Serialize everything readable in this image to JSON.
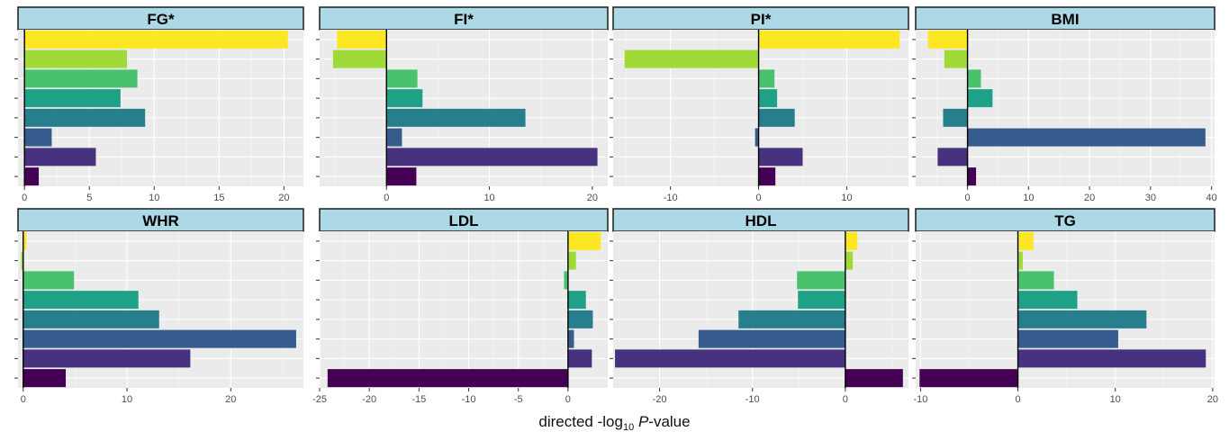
{
  "x_axis_title": {
    "prefix": "directed -log",
    "subscript": "10",
    "italic": "P",
    "suffix": "-value"
  },
  "series_colors": [
    "#fde725",
    "#a0da39",
    "#4ac16d",
    "#1fa187",
    "#277f8e",
    "#365c8d",
    "#46327e",
    "#440154"
  ],
  "chart_data": [
    {
      "type": "bar",
      "orientation": "horizontal",
      "title": "FG*",
      "xlim": [
        -0.5,
        21.5
      ],
      "ticks": [
        0,
        5,
        10,
        15,
        20
      ],
      "values": [
        20.3,
        7.9,
        8.7,
        7.4,
        9.3,
        2.1,
        5.5,
        1.1
      ]
    },
    {
      "type": "bar",
      "orientation": "horizontal",
      "title": "FI*",
      "xlim": [
        -6.5,
        21.5
      ],
      "ticks": [
        0,
        10,
        20
      ],
      "values": [
        -4.8,
        -5.2,
        3.0,
        3.5,
        13.5,
        1.5,
        20.5,
        2.9
      ]
    },
    {
      "type": "bar",
      "orientation": "horizontal",
      "title": "PI*",
      "xlim": [
        -16.5,
        17
      ],
      "ticks": [
        -10,
        0,
        10
      ],
      "values": [
        16.0,
        -15.2,
        1.8,
        2.1,
        4.1,
        -0.4,
        5.0,
        1.9
      ]
    },
    {
      "type": "bar",
      "orientation": "horizontal",
      "title": "BMI",
      "xlim": [
        -8.5,
        40.5
      ],
      "ticks": [
        0,
        10,
        20,
        30,
        40
      ],
      "values": [
        -6.5,
        -3.8,
        2.2,
        4.1,
        -4.0,
        39.0,
        -4.9,
        1.4
      ]
    },
    {
      "type": "bar",
      "orientation": "horizontal",
      "title": "WHR",
      "xlim": [
        -0.5,
        27
      ],
      "ticks": [
        0,
        10,
        20
      ],
      "values": [
        0.3,
        -0.2,
        4.9,
        11.1,
        13.1,
        26.3,
        16.1,
        4.1
      ]
    },
    {
      "type": "bar",
      "orientation": "horizontal",
      "title": "LDL",
      "xlim": [
        -25,
        4
      ],
      "ticks": [
        -25,
        -20,
        -15,
        -10,
        -5,
        0
      ],
      "values": [
        3.3,
        0.8,
        -0.4,
        1.8,
        2.5,
        0.6,
        2.4,
        -24.2
      ]
    },
    {
      "type": "bar",
      "orientation": "horizontal",
      "title": "HDL",
      "xlim": [
        -25,
        6.8
      ],
      "ticks": [
        -20,
        -10,
        0
      ],
      "values": [
        1.3,
        0.8,
        -5.2,
        -5.1,
        -11.5,
        -15.8,
        -24.8,
        6.2
      ]
    },
    {
      "type": "bar",
      "orientation": "horizontal",
      "title": "TG",
      "xlim": [
        -10.5,
        20.2
      ],
      "ticks": [
        -10,
        0,
        10,
        20
      ],
      "values": [
        1.6,
        0.5,
        3.7,
        6.1,
        13.2,
        10.3,
        19.3,
        -10.1
      ]
    }
  ]
}
